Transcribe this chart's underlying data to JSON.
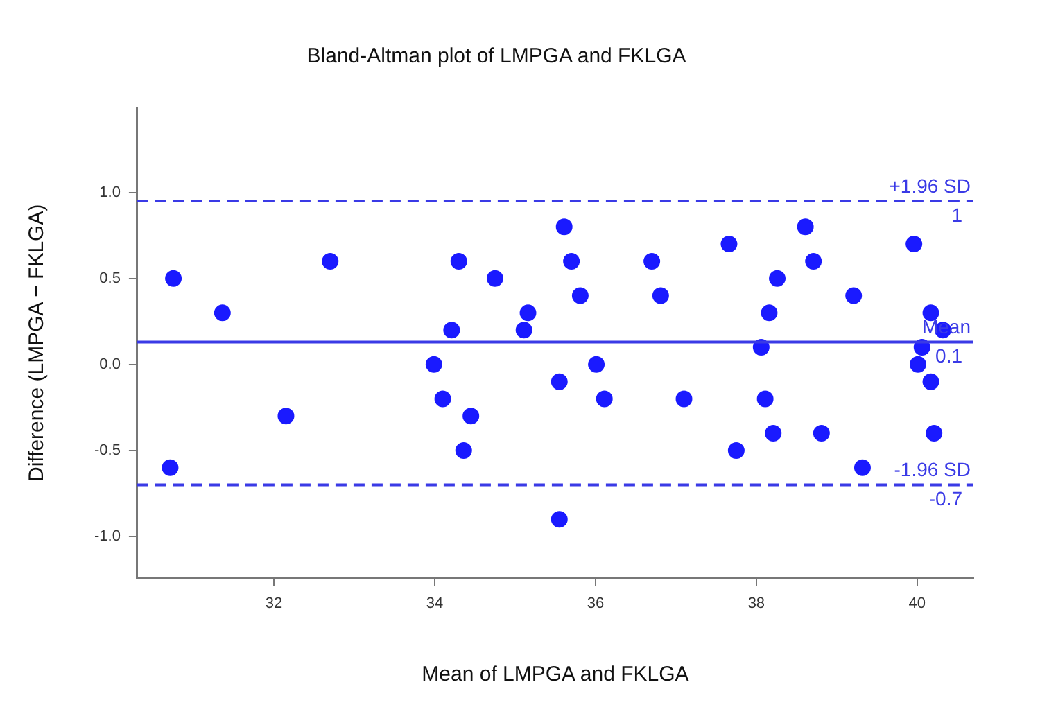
{
  "chart_data": {
    "type": "scatter",
    "title": "Bland-Altman plot of LMPGA and FKLGA",
    "xlabel": "Mean of LMPGA and FKLGA",
    "ylabel": "Difference (LMPGA − FKLGA)",
    "xlim": [
      30.3,
      40.7
    ],
    "xticks": [
      32,
      34,
      36,
      38,
      40
    ],
    "ylim": [
      -1.24,
      1.49
    ],
    "yticks": [
      {
        "value": -1,
        "label": "-1.0"
      },
      {
        "value": -0.5,
        "label": "-0.5"
      },
      {
        "value": 0,
        "label": "0.0"
      },
      {
        "value": 0.5,
        "label": "0.5"
      },
      {
        "value": 1,
        "label": "1.0"
      }
    ],
    "grid": false,
    "legend": false,
    "marker": "circle",
    "series": [
      {
        "color": "#1a1aff",
        "x": [
          30.75,
          31.36,
          32.7,
          32.15,
          30.71,
          33.99,
          35.61,
          34.3,
          35.7,
          36.7,
          34.75,
          35.81,
          36.81,
          35.16,
          34.21,
          35.11,
          36.01,
          35.55,
          34.1,
          36.11,
          37.1,
          34.45,
          34.36,
          35.55,
          38.61,
          37.66,
          39.96,
          38.71,
          38.26,
          39.21,
          38.16,
          40.17,
          40.32,
          38.06,
          40.06,
          40.01,
          40.17,
          38.11,
          38.21,
          38.81,
          40.21,
          37.75,
          39.32
        ],
        "values": [
          0.5,
          0.3,
          0.6,
          -0.3,
          -0.6,
          0,
          0.8,
          0.6,
          0.6,
          0.6,
          0.5,
          0.4,
          0.4,
          0.3,
          0.2,
          0.2,
          0,
          -0.1,
          -0.2,
          -0.2,
          -0.2,
          -0.3,
          -0.5,
          -0.9,
          0.8,
          0.7,
          0.7,
          0.6,
          0.5,
          0.4,
          0.3,
          0.3,
          0.2,
          0.1,
          0.1,
          0,
          -0.1,
          -0.2,
          -0.4,
          -0.4,
          -0.4,
          -0.5,
          -0.6
        ]
      }
    ],
    "ref_lines": [
      {
        "axis": "y",
        "value": 0.95,
        "label": "+1.96 SD",
        "color": "#3a3ae6",
        "line_style": "dashed"
      },
      {
        "axis": "y",
        "value": 0.13,
        "label": "Mean",
        "color": "#3a3ae6",
        "line_style": "solid"
      },
      {
        "axis": "y",
        "value": -0.7,
        "label": "-1.96 SD",
        "color": "#3a3ae6",
        "line_style": "dashed"
      }
    ],
    "annotations": [
      {
        "text": "1",
        "y": 0.95
      },
      {
        "text": "0.1",
        "y": 0.13
      },
      {
        "text": "-0.7",
        "y": -0.7
      }
    ]
  }
}
